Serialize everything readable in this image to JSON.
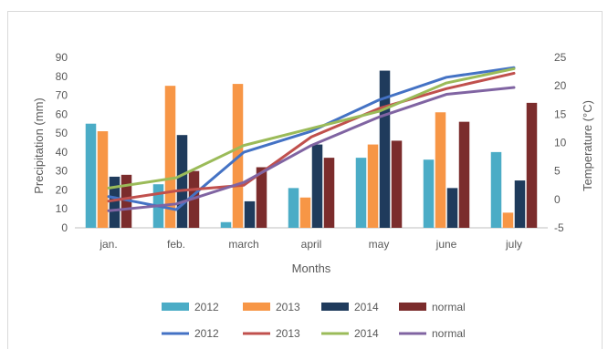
{
  "chart_data": {
    "type": "bar+line",
    "title": "",
    "categories": [
      "jan.",
      "feb.",
      "march",
      "april",
      "may",
      "june",
      "july"
    ],
    "xlabel": "Months",
    "ylabel_left": "Precipitation (mm)",
    "ylabel_right": "Temperature (°C)",
    "ylim_left": [
      0,
      90
    ],
    "yticks_left": [
      "0",
      "10",
      "20",
      "30",
      "40",
      "50",
      "60",
      "70",
      "80",
      "90"
    ],
    "ylim_right": [
      -5,
      25
    ],
    "yticks_right": [
      "-5",
      "0",
      "5",
      "10",
      "15",
      "20",
      "25"
    ],
    "grid": false,
    "legend_position": "bottom",
    "bar_series": [
      {
        "name": "2012",
        "color": "#4bacc6",
        "values": [
          55,
          23,
          3,
          21,
          37,
          36,
          40
        ]
      },
      {
        "name": "2013",
        "color": "#f79646",
        "values": [
          51,
          75,
          76,
          16,
          44,
          61,
          8
        ]
      },
      {
        "name": "2014",
        "color": "#1f3b5c",
        "values": [
          27,
          49,
          14,
          44,
          83,
          21,
          25
        ]
      },
      {
        "name": "normal",
        "color": "#7b2c2c",
        "values": [
          28,
          30,
          32,
          37,
          46,
          56,
          66
        ]
      }
    ],
    "line_series": [
      {
        "name": "2012",
        "color": "#4472c4",
        "values": [
          0.5,
          -1.8,
          8.3,
          12.0,
          17.5,
          21.5,
          23.2
        ]
      },
      {
        "name": "2013",
        "color": "#c0504d",
        "values": [
          -0.3,
          1.5,
          2.5,
          11.0,
          16.0,
          19.5,
          22.2
        ]
      },
      {
        "name": "2014",
        "color": "#9bbb59",
        "values": [
          2.0,
          3.8,
          9.5,
          12.5,
          15.5,
          20.5,
          23.0
        ]
      },
      {
        "name": "normal",
        "color": "#8064a2",
        "values": [
          -2.0,
          -0.8,
          3.0,
          9.5,
          14.5,
          18.5,
          19.7
        ]
      }
    ]
  }
}
